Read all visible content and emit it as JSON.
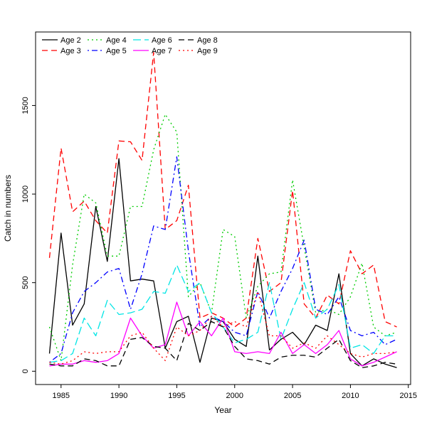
{
  "chart_data": {
    "type": "line",
    "title": "",
    "xlabel": "Year",
    "ylabel": "Catch in numbers",
    "grid": false,
    "legend_position": "top-left",
    "xlim": [
      1982.8,
      2015.2
    ],
    "ylim": [
      -75,
      1915
    ],
    "xticks": [
      1985,
      1990,
      1995,
      2000,
      2005,
      2010,
      2015
    ],
    "yticks": [
      0,
      500,
      1000,
      1500
    ],
    "x": [
      1984,
      1985,
      1986,
      1987,
      1988,
      1989,
      1990,
      1991,
      1992,
      1993,
      1994,
      1995,
      1996,
      1997,
      1998,
      1999,
      2000,
      2001,
      2002,
      2003,
      2004,
      2005,
      2006,
      2007,
      2008,
      2009,
      2010,
      2011,
      2012,
      2013,
      2014
    ],
    "series": [
      {
        "name": "Age 2",
        "color": "#000000",
        "linestyle": "solid",
        "values": [
          100,
          780,
          260,
          380,
          930,
          620,
          1200,
          510,
          520,
          510,
          130,
          280,
          310,
          50,
          300,
          280,
          180,
          140,
          650,
          120,
          180,
          220,
          150,
          260,
          230,
          550,
          100,
          30,
          70,
          40,
          20
        ]
      },
      {
        "name": "Age 3",
        "color": "#FF0000",
        "linestyle": "dashed",
        "values": [
          640,
          1260,
          900,
          960,
          850,
          780,
          1300,
          1295,
          1190,
          1800,
          800,
          850,
          1050,
          300,
          330,
          300,
          250,
          300,
          750,
          450,
          500,
          1020,
          380,
          300,
          430,
          380,
          680,
          550,
          600,
          280,
          250
        ]
      },
      {
        "name": "Age 4",
        "color": "#00CC00",
        "linestyle": "dotted",
        "values": [
          250,
          60,
          600,
          1000,
          950,
          650,
          650,
          930,
          930,
          1250,
          1450,
          1350,
          420,
          500,
          330,
          800,
          760,
          300,
          480,
          550,
          560,
          1080,
          700,
          330,
          350,
          320,
          420,
          610,
          250,
          200,
          220
        ]
      },
      {
        "name": "Age 5",
        "color": "#0000FF",
        "linestyle": "dashdot",
        "values": [
          50,
          100,
          330,
          450,
          500,
          560,
          580,
          350,
          550,
          820,
          800,
          1210,
          680,
          250,
          310,
          280,
          220,
          200,
          450,
          300,
          450,
          580,
          740,
          350,
          320,
          420,
          230,
          200,
          220,
          150,
          180
        ]
      },
      {
        "name": "Age 6",
        "color": "#00E5E5",
        "linestyle": "longdash",
        "values": [
          50,
          60,
          100,
          300,
          200,
          400,
          320,
          330,
          350,
          450,
          440,
          600,
          450,
          500,
          330,
          250,
          160,
          180,
          220,
          500,
          180,
          350,
          500,
          300,
          350,
          490,
          130,
          150,
          100,
          200,
          200
        ]
      },
      {
        "name": "Age 7",
        "color": "#FF00FF",
        "linestyle": "solid",
        "values": [
          30,
          40,
          40,
          60,
          50,
          60,
          100,
          300,
          200,
          130,
          150,
          390,
          200,
          280,
          200,
          300,
          110,
          100,
          110,
          100,
          220,
          100,
          150,
          100,
          150,
          230,
          70,
          30,
          50,
          80,
          110
        ]
      },
      {
        "name": "Age 8",
        "color": "#000000",
        "linestyle": "dashed",
        "values": [
          40,
          30,
          30,
          70,
          60,
          30,
          30,
          180,
          190,
          140,
          130,
          60,
          270,
          230,
          280,
          250,
          140,
          70,
          60,
          40,
          80,
          90,
          90,
          80,
          130,
          180,
          60,
          20,
          30,
          50,
          40
        ]
      },
      {
        "name": "Age 9",
        "color": "#FF0000",
        "linestyle": "dotted",
        "values": [
          50,
          40,
          60,
          110,
          100,
          110,
          110,
          200,
          220,
          130,
          60,
          250,
          200,
          230,
          310,
          250,
          280,
          250,
          450,
          200,
          200,
          130,
          160,
          130,
          200,
          150,
          100,
          80,
          100,
          100,
          110
        ]
      }
    ]
  }
}
